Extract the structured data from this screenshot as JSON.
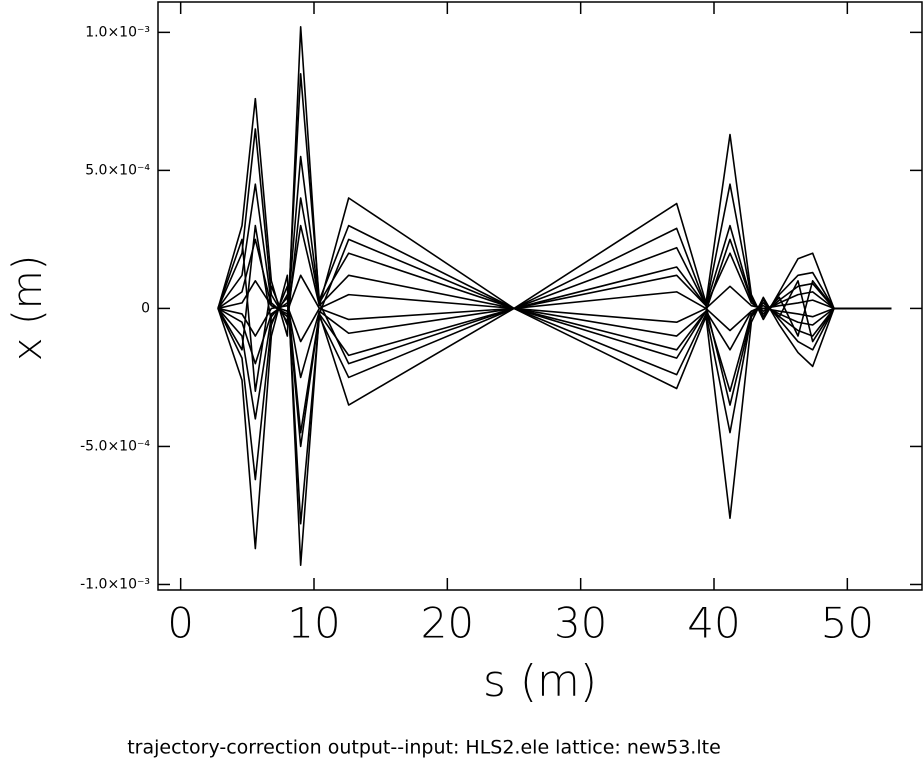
{
  "chart_data": {
    "type": "line",
    "xlabel": "s  (m)",
    "ylabel": "x  (m)",
    "footnote": "trajectory-correction  output--input:  HLS2.ele   lattice:  new53.lte",
    "x": [
      2.8,
      4.6,
      5.6,
      6.8,
      8.0,
      9.0,
      10.4,
      12.6,
      25,
      37.2,
      39.4,
      41.2,
      42.8,
      43.7,
      44.9,
      46.3,
      47.4,
      49.0,
      53.3
    ],
    "series": [
      {
        "color": "#000000",
        "values": [
          0,
          0.0003,
          0.00076,
          0.0001,
          -0.0001,
          0.00102,
          1e-05,
          0.0004,
          0,
          0.00038,
          2e-05,
          0.00063,
          5e-05,
          -4e-05,
          6e-05,
          0.00018,
          0.0002,
          0,
          0
        ]
      },
      {
        "color": "#000000",
        "values": [
          0,
          -0.00026,
          -0.00087,
          -0.0001,
          0.00012,
          -0.00093,
          -2e-05,
          -0.00035,
          0,
          -0.00029,
          -3e-05,
          -0.00076,
          -5e-05,
          4e-05,
          -6e-05,
          -0.00016,
          -0.00021,
          0,
          0
        ]
      },
      {
        "color": "#000000",
        "values": [
          0,
          0.0002,
          0.00065,
          5e-05,
          -5e-05,
          0.00085,
          3e-05,
          0.0003,
          0,
          0.00029,
          1e-05,
          0.00045,
          4e-05,
          -3e-05,
          5e-05,
          0.00012,
          0.00013,
          0,
          0
        ]
      },
      {
        "color": "#000000",
        "values": [
          0,
          -0.00018,
          -0.00062,
          -6e-05,
          8e-05,
          -0.00078,
          -3e-05,
          -0.00025,
          0,
          -0.00024,
          -2e-05,
          -0.00045,
          -3e-05,
          3e-05,
          -4e-05,
          -0.00012,
          -0.00015,
          0,
          0
        ]
      },
      {
        "color": "#000000",
        "values": [
          0,
          0.00012,
          0.00045,
          2e-05,
          -3e-05,
          0.00055,
          2e-05,
          0.0002,
          0,
          0.00022,
          1e-05,
          0.0003,
          3e-05,
          -2e-05,
          3e-05,
          8e-05,
          9e-05,
          0,
          0
        ]
      },
      {
        "color": "#000000",
        "values": [
          0,
          -0.0001,
          -0.0004,
          -3e-05,
          4e-05,
          -0.0005,
          -2e-05,
          -0.00017,
          0,
          -0.00018,
          -1e-05,
          -0.0003,
          -2e-05,
          2e-05,
          -3e-05,
          -8e-05,
          -0.0001,
          0,
          0
        ]
      },
      {
        "color": "#000000",
        "values": [
          0,
          6e-05,
          0.00025,
          1e-05,
          -2e-05,
          0.0003,
          1e-05,
          0.00012,
          0,
          0.00015,
          1e-05,
          0.0002,
          2e-05,
          -1e-05,
          2e-05,
          5e-05,
          6e-05,
          0,
          0
        ]
      },
      {
        "color": "#000000",
        "values": [
          0,
          -5e-05,
          -0.0002,
          -2e-05,
          2e-05,
          -0.00025,
          -1e-05,
          -9e-05,
          0,
          -0.0001,
          -1e-05,
          -0.00015,
          -1e-05,
          1e-05,
          -2e-05,
          -5e-05,
          -6e-05,
          0,
          0
        ]
      },
      {
        "color": "#000000",
        "values": [
          0,
          2e-05,
          0.0001,
          1e-05,
          -1e-05,
          0.00012,
          0,
          5e-05,
          0,
          6e-05,
          0,
          8e-05,
          1e-05,
          0,
          1e-05,
          2e-05,
          3e-05,
          0,
          0
        ]
      },
      {
        "color": "#000000",
        "values": [
          0,
          -2e-05,
          -0.0001,
          0,
          1e-05,
          -0.00012,
          0,
          -4e-05,
          0,
          -5e-05,
          0,
          -8e-05,
          -1e-05,
          0,
          -1e-05,
          -2e-05,
          -3e-05,
          0,
          0
        ]
      },
      {
        "color": "#000000",
        "values": [
          0,
          0.00025,
          -0.0003,
          8e-05,
          -6e-05,
          0.0004,
          2e-05,
          -0.0002,
          0,
          -0.00015,
          -1e-05,
          0.00025,
          3e-05,
          -2e-05,
          4e-05,
          -0.0001,
          0.0001,
          0,
          0
        ]
      },
      {
        "color": "#000000",
        "values": [
          0,
          -0.00015,
          0.0003,
          -5e-05,
          5e-05,
          -0.00045,
          -2e-05,
          0.00025,
          0,
          0.00012,
          1e-05,
          -0.00035,
          -3e-05,
          2e-05,
          -3e-05,
          0.0001,
          -0.00012,
          0,
          0
        ]
      }
    ],
    "xlim": [
      -1.7,
      55.6
    ],
    "xticks": [
      0,
      10,
      20,
      30,
      40,
      50
    ],
    "ylim": [
      -0.00102,
      0.00111
    ],
    "yticks": [
      {
        "value": 0.001,
        "label": "1.0×10⁻³"
      },
      {
        "value": 0.0005,
        "label": "5.0×10⁻⁴"
      },
      0,
      {
        "value": -0.0005,
        "label": "-5.0×10⁻⁴"
      },
      {
        "value": -0.001,
        "label": "-1.0×10⁻³"
      }
    ]
  }
}
